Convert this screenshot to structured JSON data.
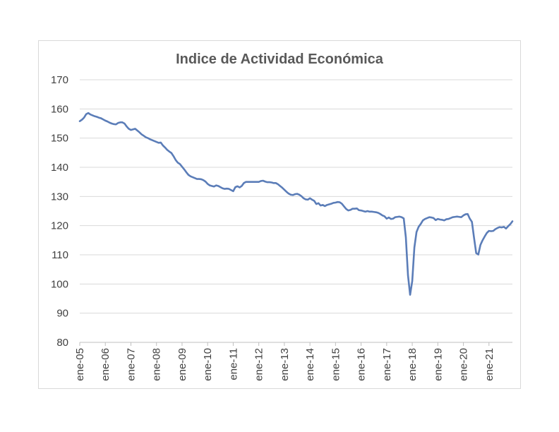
{
  "chart_data": {
    "type": "line",
    "title": "Indice de Actividad Económica",
    "xlabel": "",
    "ylabel": "",
    "ylim": [
      80,
      170
    ],
    "yticks": [
      80,
      90,
      100,
      110,
      120,
      130,
      140,
      150,
      160,
      170
    ],
    "grid": true,
    "legend": "none",
    "line_color": "#5B7DB8",
    "x_tick_labels": [
      "ene-05",
      "ene-06",
      "ene-07",
      "ene-08",
      "ene-09",
      "ene-10",
      "ene-11",
      "ene-12",
      "ene-13",
      "ene-14",
      "ene-15",
      "ene-16",
      "ene-17",
      "ene-18",
      "ene-19",
      "ene-20",
      "ene-21"
    ],
    "series": [
      {
        "points": [
          [
            "2005-01",
            155.8
          ],
          [
            "2005-02",
            156.3
          ],
          [
            "2005-03",
            157.0
          ],
          [
            "2005-04",
            158.2
          ],
          [
            "2005-05",
            158.6
          ],
          [
            "2005-06",
            158.1
          ],
          [
            "2005-07",
            157.8
          ],
          [
            "2005-08",
            157.5
          ],
          [
            "2005-09",
            157.3
          ],
          [
            "2005-10",
            157.0
          ],
          [
            "2005-11",
            156.8
          ],
          [
            "2005-12",
            156.4
          ],
          [
            "2006-01",
            156.0
          ],
          [
            "2006-02",
            155.7
          ],
          [
            "2006-03",
            155.3
          ],
          [
            "2006-04",
            155.0
          ],
          [
            "2006-05",
            154.8
          ],
          [
            "2006-06",
            154.7
          ],
          [
            "2006-07",
            155.2
          ],
          [
            "2006-08",
            155.4
          ],
          [
            "2006-09",
            155.4
          ],
          [
            "2006-10",
            155.0
          ],
          [
            "2006-11",
            154.0
          ],
          [
            "2006-12",
            153.2
          ],
          [
            "2007-01",
            152.8
          ],
          [
            "2007-02",
            153.0
          ],
          [
            "2007-03",
            153.2
          ],
          [
            "2007-04",
            152.6
          ],
          [
            "2007-05",
            152.0
          ],
          [
            "2007-06",
            151.3
          ],
          [
            "2007-07",
            150.8
          ],
          [
            "2007-08",
            150.3
          ],
          [
            "2007-09",
            150.0
          ],
          [
            "2007-10",
            149.6
          ],
          [
            "2007-11",
            149.3
          ],
          [
            "2007-12",
            149.0
          ],
          [
            "2008-01",
            148.7
          ],
          [
            "2008-02",
            148.4
          ],
          [
            "2008-03",
            148.5
          ],
          [
            "2008-04",
            147.5
          ],
          [
            "2008-05",
            146.8
          ],
          [
            "2008-06",
            146.0
          ],
          [
            "2008-07",
            145.4
          ],
          [
            "2008-08",
            144.9
          ],
          [
            "2008-09",
            143.8
          ],
          [
            "2008-10",
            142.5
          ],
          [
            "2008-11",
            141.6
          ],
          [
            "2008-12",
            141.1
          ],
          [
            "2009-01",
            140.2
          ],
          [
            "2009-02",
            139.3
          ],
          [
            "2009-03",
            138.3
          ],
          [
            "2009-04",
            137.4
          ],
          [
            "2009-05",
            136.9
          ],
          [
            "2009-06",
            136.6
          ],
          [
            "2009-07",
            136.3
          ],
          [
            "2009-08",
            136.0
          ],
          [
            "2009-09",
            136.0
          ],
          [
            "2009-10",
            135.9
          ],
          [
            "2009-11",
            135.6
          ],
          [
            "2009-12",
            135.1
          ],
          [
            "2010-01",
            134.3
          ],
          [
            "2010-02",
            133.8
          ],
          [
            "2010-03",
            133.6
          ],
          [
            "2010-04",
            133.4
          ],
          [
            "2010-05",
            133.8
          ],
          [
            "2010-06",
            133.6
          ],
          [
            "2010-07",
            133.2
          ],
          [
            "2010-08",
            132.8
          ],
          [
            "2010-09",
            132.6
          ],
          [
            "2010-10",
            132.7
          ],
          [
            "2010-11",
            132.6
          ],
          [
            "2010-12",
            132.2
          ],
          [
            "2011-01",
            131.8
          ],
          [
            "2011-02",
            133.2
          ],
          [
            "2011-03",
            133.5
          ],
          [
            "2011-04",
            133.1
          ],
          [
            "2011-05",
            133.6
          ],
          [
            "2011-06",
            134.6
          ],
          [
            "2011-07",
            135.0
          ],
          [
            "2011-08",
            135.0
          ],
          [
            "2011-09",
            135.0
          ],
          [
            "2011-10",
            135.0
          ],
          [
            "2011-11",
            135.0
          ],
          [
            "2011-12",
            135.0
          ],
          [
            "2012-01",
            135.0
          ],
          [
            "2012-02",
            135.3
          ],
          [
            "2012-03",
            135.4
          ],
          [
            "2012-04",
            135.1
          ],
          [
            "2012-05",
            134.9
          ],
          [
            "2012-06",
            134.9
          ],
          [
            "2012-07",
            134.8
          ],
          [
            "2012-08",
            134.6
          ],
          [
            "2012-09",
            134.6
          ],
          [
            "2012-10",
            134.2
          ],
          [
            "2012-11",
            133.6
          ],
          [
            "2012-12",
            133.0
          ],
          [
            "2013-01",
            132.3
          ],
          [
            "2013-02",
            131.6
          ],
          [
            "2013-03",
            131.0
          ],
          [
            "2013-04",
            130.6
          ],
          [
            "2013-05",
            130.5
          ],
          [
            "2013-06",
            130.8
          ],
          [
            "2013-07",
            130.9
          ],
          [
            "2013-08",
            130.6
          ],
          [
            "2013-09",
            130.1
          ],
          [
            "2013-10",
            129.4
          ],
          [
            "2013-11",
            129.0
          ],
          [
            "2013-12",
            128.9
          ],
          [
            "2014-01",
            129.4
          ],
          [
            "2014-02",
            128.9
          ],
          [
            "2014-03",
            128.5
          ],
          [
            "2014-04",
            127.4
          ],
          [
            "2014-05",
            127.7
          ],
          [
            "2014-06",
            126.9
          ],
          [
            "2014-07",
            127.1
          ],
          [
            "2014-08",
            126.7
          ],
          [
            "2014-09",
            127.1
          ],
          [
            "2014-10",
            127.3
          ],
          [
            "2014-11",
            127.5
          ],
          [
            "2014-12",
            127.8
          ],
          [
            "2015-01",
            127.9
          ],
          [
            "2015-02",
            128.1
          ],
          [
            "2015-03",
            128.0
          ],
          [
            "2015-04",
            127.5
          ],
          [
            "2015-05",
            126.6
          ],
          [
            "2015-06",
            125.7
          ],
          [
            "2015-07",
            125.2
          ],
          [
            "2015-08",
            125.4
          ],
          [
            "2015-09",
            125.8
          ],
          [
            "2015-10",
            125.8
          ],
          [
            "2015-11",
            125.9
          ],
          [
            "2015-12",
            125.3
          ],
          [
            "2016-01",
            125.2
          ],
          [
            "2016-02",
            125.0
          ],
          [
            "2016-03",
            124.8
          ],
          [
            "2016-04",
            125.0
          ],
          [
            "2016-05",
            124.8
          ],
          [
            "2016-06",
            124.8
          ],
          [
            "2016-07",
            124.7
          ],
          [
            "2016-08",
            124.6
          ],
          [
            "2016-09",
            124.4
          ],
          [
            "2016-10",
            124.0
          ],
          [
            "2016-11",
            123.5
          ],
          [
            "2016-12",
            123.2
          ],
          [
            "2017-01",
            122.4
          ],
          [
            "2017-02",
            122.8
          ],
          [
            "2017-03",
            122.3
          ],
          [
            "2017-04",
            122.4
          ],
          [
            "2017-05",
            122.9
          ],
          [
            "2017-06",
            123.0
          ],
          [
            "2017-07",
            123.1
          ],
          [
            "2017-08",
            122.9
          ],
          [
            "2017-09",
            122.5
          ],
          [
            "2017-10",
            116.0
          ],
          [
            "2017-11",
            103.0
          ],
          [
            "2017-12",
            96.3
          ],
          [
            "2018-01",
            101.0
          ],
          [
            "2018-02",
            112.5
          ],
          [
            "2018-03",
            117.8
          ],
          [
            "2018-04",
            119.6
          ],
          [
            "2018-05",
            120.6
          ],
          [
            "2018-06",
            121.8
          ],
          [
            "2018-07",
            122.3
          ],
          [
            "2018-08",
            122.6
          ],
          [
            "2018-09",
            122.9
          ],
          [
            "2018-10",
            122.8
          ],
          [
            "2018-11",
            122.6
          ],
          [
            "2018-12",
            121.9
          ],
          [
            "2019-01",
            122.3
          ],
          [
            "2019-02",
            122.1
          ],
          [
            "2019-03",
            122.0
          ],
          [
            "2019-04",
            121.8
          ],
          [
            "2019-05",
            122.2
          ],
          [
            "2019-06",
            122.3
          ],
          [
            "2019-07",
            122.6
          ],
          [
            "2019-08",
            122.9
          ],
          [
            "2019-09",
            123.0
          ],
          [
            "2019-10",
            123.1
          ],
          [
            "2019-11",
            123.0
          ],
          [
            "2019-12",
            122.9
          ],
          [
            "2020-01",
            123.5
          ],
          [
            "2020-02",
            123.9
          ],
          [
            "2020-03",
            124.0
          ],
          [
            "2020-04",
            122.4
          ],
          [
            "2020-05",
            121.3
          ],
          [
            "2020-06",
            115.8
          ],
          [
            "2020-07",
            110.6
          ],
          [
            "2020-08",
            110.1
          ],
          [
            "2020-09",
            113.4
          ],
          [
            "2020-10",
            115.0
          ],
          [
            "2020-11",
            116.3
          ],
          [
            "2020-12",
            117.5
          ],
          [
            "2021-01",
            118.2
          ],
          [
            "2021-02",
            118.1
          ],
          [
            "2021-03",
            118.2
          ],
          [
            "2021-04",
            118.8
          ],
          [
            "2021-05",
            119.2
          ],
          [
            "2021-06",
            119.5
          ],
          [
            "2021-07",
            119.4
          ],
          [
            "2021-08",
            119.6
          ],
          [
            "2021-09",
            119.0
          ],
          [
            "2021-10",
            119.8
          ],
          [
            "2021-11",
            120.5
          ],
          [
            "2021-12",
            121.5
          ]
        ]
      }
    ]
  }
}
